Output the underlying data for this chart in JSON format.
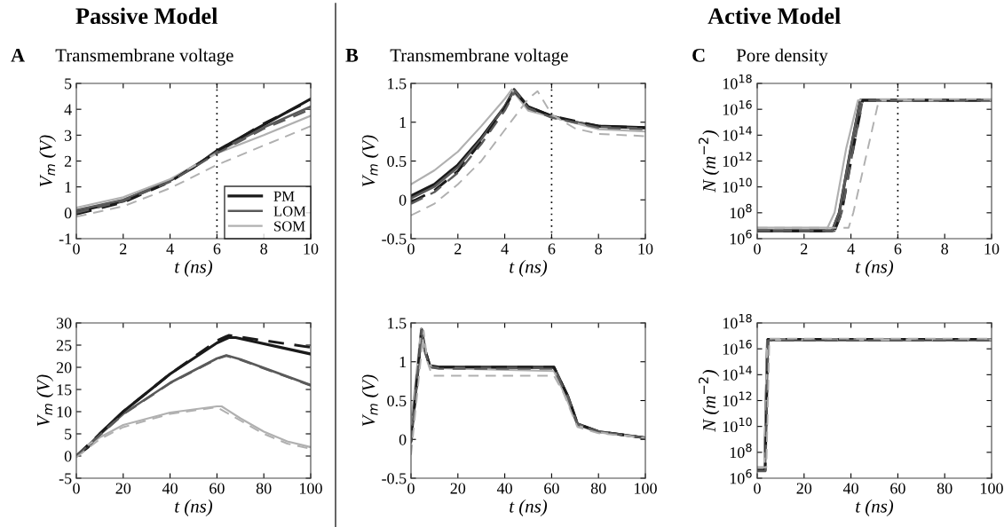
{
  "chart_data": [
    {
      "type": "line",
      "title": "Transmembrane voltage",
      "annotations": [
        "A",
        "Passive Model"
      ],
      "xlabel": "t (ns)",
      "ylabel": "V$_{m}$ (V)",
      "xlim": [
        0,
        10
      ],
      "xticks": [
        0,
        2,
        4,
        6,
        8,
        10
      ],
      "ylim": [
        -1,
        5
      ],
      "yticks": [
        -1,
        0,
        1,
        2,
        3,
        4,
        5
      ],
      "legend": "bottom right",
      "ref_lines": [
        {
          "axis": "x",
          "value": 6,
          "color": "#000000",
          "line_style": "dotted"
        }
      ],
      "series": [
        {
          "name": "PM",
          "color": "#1a1a1a",
          "line_style": "solid",
          "x": [
            0,
            2,
            4,
            5,
            6,
            7,
            8,
            9,
            10
          ],
          "values": [
            0.05,
            0.45,
            1.25,
            1.75,
            2.4,
            2.9,
            3.4,
            3.9,
            4.4
          ]
        },
        {
          "color": "#1a1a1a",
          "line_style": "dashed",
          "x": [
            0,
            2,
            4,
            6,
            8,
            10
          ],
          "values": [
            -0.05,
            0.4,
            1.2,
            2.35,
            3.45,
            4.35
          ]
        },
        {
          "name": "LOM",
          "color": "#5a5a5a",
          "line_style": "solid",
          "x": [
            0,
            2,
            4,
            6,
            8,
            10
          ],
          "values": [
            0.1,
            0.5,
            1.25,
            2.35,
            3.3,
            4.1
          ]
        },
        {
          "color": "#5a5a5a",
          "line_style": "dashed",
          "x": [
            0,
            2,
            4,
            6,
            8,
            10
          ],
          "values": [
            0.0,
            0.45,
            1.2,
            2.3,
            3.25,
            4.0
          ]
        },
        {
          "name": "SOM",
          "color": "#b0b0b0",
          "line_style": "solid",
          "x": [
            0,
            2,
            4,
            6,
            8,
            10
          ],
          "values": [
            0.2,
            0.6,
            1.3,
            2.3,
            3.0,
            3.75
          ]
        },
        {
          "color": "#b0b0b0",
          "line_style": "dashed",
          "x": [
            0,
            2,
            4,
            6,
            8,
            10
          ],
          "values": [
            -0.15,
            0.25,
            0.95,
            1.85,
            2.6,
            3.35
          ]
        }
      ]
    },
    {
      "type": "line",
      "title": "Transmembrane voltage",
      "annotations": [
        "B",
        "Active Model"
      ],
      "xlabel": "t (ns)",
      "ylabel": "V$_{m}$ (V)",
      "xlim": [
        0,
        10
      ],
      "xticks": [
        0,
        2,
        4,
        6,
        8,
        10
      ],
      "ylim": [
        -0.5,
        1.5
      ],
      "yticks": [
        -0.5,
        0,
        0.5,
        1,
        1.5
      ],
      "ref_lines": [
        {
          "axis": "x",
          "value": 6,
          "color": "#000000",
          "line_style": "dotted"
        }
      ],
      "series": [
        {
          "color": "#1a1a1a",
          "line_style": "solid",
          "x": [
            0,
            1,
            2,
            3,
            4,
            4.4,
            5,
            6,
            7,
            8,
            10
          ],
          "values": [
            0.05,
            0.2,
            0.45,
            0.8,
            1.2,
            1.42,
            1.2,
            1.08,
            1.0,
            0.95,
            0.93
          ]
        },
        {
          "color": "#1a1a1a",
          "line_style": "dashed",
          "x": [
            0,
            1,
            2,
            3,
            4,
            4.4,
            5,
            6,
            8,
            10
          ],
          "values": [
            -0.03,
            0.12,
            0.37,
            0.75,
            1.18,
            1.4,
            1.2,
            1.08,
            0.95,
            0.93
          ]
        },
        {
          "color": "#5a5a5a",
          "line_style": "solid",
          "x": [
            0,
            1,
            2,
            3,
            4,
            4.4,
            5,
            6,
            8,
            10
          ],
          "values": [
            0.02,
            0.17,
            0.42,
            0.78,
            1.2,
            1.41,
            1.18,
            1.07,
            0.94,
            0.92
          ]
        },
        {
          "color": "#5a5a5a",
          "line_style": "dashed",
          "x": [
            0,
            1,
            2,
            3,
            4,
            4.45,
            5,
            6,
            8,
            10
          ],
          "values": [
            -0.05,
            0.1,
            0.35,
            0.72,
            1.15,
            1.4,
            1.18,
            1.06,
            0.93,
            0.91
          ]
        },
        {
          "color": "#b0b0b0",
          "line_style": "solid",
          "x": [
            0,
            1,
            2,
            3,
            4,
            4.3,
            5,
            6,
            8,
            10
          ],
          "values": [
            0.2,
            0.38,
            0.62,
            0.95,
            1.3,
            1.42,
            1.15,
            1.07,
            0.91,
            0.88
          ]
        },
        {
          "color": "#b0b0b0",
          "line_style": "dashed",
          "x": [
            0,
            1,
            2,
            3,
            4,
            5,
            5.4,
            6,
            7,
            8,
            10
          ],
          "values": [
            -0.2,
            -0.05,
            0.2,
            0.5,
            0.9,
            1.3,
            1.4,
            1.1,
            0.92,
            0.85,
            0.82
          ]
        }
      ]
    },
    {
      "type": "line",
      "title": "Pore density",
      "annotations": [
        "C"
      ],
      "xlabel": "t (ns)",
      "ylabel": "N (m$^{−2}$)",
      "log": "y",
      "xlim": [
        0,
        10
      ],
      "xticks": [
        0,
        2,
        4,
        6,
        8,
        10
      ],
      "ylim": [
        1000000.0,
        1e+18
      ],
      "yticks": [
        {
          "value": 1000000.0,
          "label": "10$^{6}$"
        },
        {
          "value": 100000000.0,
          "label": "10$^{8}$"
        },
        {
          "value": 10000000000.0,
          "label": "10$^{10}$"
        },
        {
          "value": 1000000000000.0,
          "label": "10$^{12}$"
        },
        {
          "value": 100000000000000.0,
          "label": "10$^{14}$"
        },
        {
          "value": 1e+16,
          "label": "10$^{16}$"
        },
        {
          "value": 1e+18,
          "label": "10$^{18}$"
        }
      ],
      "ref_lines": [
        {
          "axis": "x",
          "value": 6,
          "color": "#000000",
          "line_style": "dotted"
        }
      ],
      "series": [
        {
          "color": "#1a1a1a",
          "line_style": "solid",
          "x": [
            0,
            3.2,
            3.5,
            4,
            4.4,
            10
          ],
          "values": [
            4000000.0,
            4000000.0,
            100000000.0,
            10000000000000.0,
            5e+16,
            5e+16
          ]
        },
        {
          "color": "#1a1a1a",
          "line_style": "dashed",
          "x": [
            0,
            3.3,
            3.6,
            4.1,
            4.5,
            10
          ],
          "values": [
            4000000.0,
            4000000.0,
            100000000.0,
            10000000000000.0,
            5e+16,
            5e+16
          ]
        },
        {
          "color": "#5a5a5a",
          "line_style": "solid",
          "x": [
            0,
            3.2,
            3.5,
            4,
            4.4,
            10
          ],
          "values": [
            4000000.0,
            4000000.0,
            100000000.0,
            10000000000000.0,
            5e+16,
            5e+16
          ]
        },
        {
          "color": "#5a5a5a",
          "line_style": "dashed",
          "x": [
            0,
            3.3,
            3.6,
            4.1,
            4.5,
            10
          ],
          "values": [
            4000000.0,
            4000000.0,
            100000000.0,
            10000000000000.0,
            5e+16,
            5e+16
          ]
        },
        {
          "color": "#b0b0b0",
          "line_style": "solid",
          "x": [
            0,
            3.0,
            3.3,
            3.8,
            4.3,
            10
          ],
          "values": [
            7000000.0,
            7000000.0,
            100000000.0,
            10000000000000.0,
            5e+16,
            5e+16
          ]
        },
        {
          "color": "#b0b0b0",
          "line_style": "dashed",
          "x": [
            0,
            3.9,
            4.1,
            4.6,
            5.2,
            10
          ],
          "values": [
            7000000.0,
            7000000.0,
            100000000.0,
            1000000000000.0,
            6e+16,
            6e+16
          ]
        }
      ]
    },
    {
      "type": "line",
      "xlabel": "t (ns)",
      "ylabel": "V$_{m}$ (V)",
      "xlim": [
        0,
        100
      ],
      "xticks": [
        0,
        20,
        40,
        60,
        80,
        100
      ],
      "ylim": [
        -5,
        30
      ],
      "yticks": [
        -5,
        0,
        5,
        10,
        15,
        20,
        25,
        30
      ],
      "series": [
        {
          "color": "#1a1a1a",
          "line_style": "solid",
          "x": [
            0,
            5,
            10,
            20,
            40,
            60,
            65,
            68,
            100
          ],
          "values": [
            0,
            2,
            5,
            10,
            18.5,
            25.5,
            26.7,
            26.7,
            23
          ]
        },
        {
          "color": "#1a1a1a",
          "line_style": "dashed",
          "x": [
            0,
            10,
            20,
            40,
            60,
            65,
            100
          ],
          "values": [
            0,
            5,
            10,
            18.5,
            26,
            27.2,
            24.5
          ]
        },
        {
          "color": "#5a5a5a",
          "line_style": "solid",
          "x": [
            0,
            10,
            20,
            40,
            60,
            64,
            70,
            100
          ],
          "values": [
            0,
            4.8,
            9.5,
            16.5,
            22,
            22.7,
            21.8,
            16
          ]
        },
        {
          "color": "#5a5a5a",
          "line_style": "dashed",
          "x": [
            0,
            10,
            20,
            40,
            60,
            64,
            70,
            100
          ],
          "values": [
            0,
            4.7,
            9.4,
            16.4,
            21.9,
            22.6,
            21.7,
            15.9
          ]
        },
        {
          "color": "#b0b0b0",
          "line_style": "solid",
          "x": [
            0,
            5,
            10,
            20,
            40,
            60,
            62,
            70,
            80,
            90,
            100
          ],
          "values": [
            0,
            2.5,
            4.2,
            7,
            9.8,
            11.2,
            11.2,
            8.5,
            5.5,
            3.3,
            2
          ]
        },
        {
          "color": "#b0b0b0",
          "line_style": "dashed",
          "x": [
            0,
            10,
            20,
            40,
            60,
            70,
            80,
            90,
            100
          ],
          "values": [
            -0.3,
            3.8,
            6.5,
            9.5,
            11,
            8,
            5,
            2.8,
            1.6
          ]
        }
      ]
    },
    {
      "type": "line",
      "xlabel": "t (ns)",
      "ylabel": "V$_{m}$ (V)",
      "xlim": [
        0,
        100
      ],
      "xticks": [
        0,
        20,
        40,
        60,
        80,
        100
      ],
      "ylim": [
        -0.5,
        1.5
      ],
      "yticks": [
        -0.5,
        0,
        0.5,
        1,
        1.5
      ],
      "series": [
        {
          "color": "#1a1a1a",
          "line_style": "solid",
          "x": [
            0,
            3,
            4.5,
            6,
            8,
            12,
            61,
            67,
            71,
            80,
            100
          ],
          "values": [
            0,
            0.9,
            1.42,
            1.15,
            0.95,
            0.93,
            0.93,
            0.55,
            0.2,
            0.1,
            0.02
          ]
        },
        {
          "color": "#1a1a1a",
          "line_style": "dashed",
          "x": [
            0,
            4.5,
            6,
            8,
            12,
            61,
            67,
            71,
            80,
            100
          ],
          "values": [
            -0.03,
            1.4,
            1.15,
            0.95,
            0.93,
            0.93,
            0.55,
            0.2,
            0.1,
            0.02
          ]
        },
        {
          "color": "#5a5a5a",
          "line_style": "solid",
          "x": [
            0,
            4.5,
            6,
            8,
            12,
            61,
            67,
            71,
            80,
            100
          ],
          "values": [
            0.02,
            1.41,
            1.14,
            0.94,
            0.92,
            0.92,
            0.55,
            0.2,
            0.1,
            0.02
          ]
        },
        {
          "color": "#5a5a5a",
          "line_style": "dashed",
          "x": [
            0,
            4.5,
            6,
            8,
            12,
            61,
            67,
            71,
            80,
            100
          ],
          "values": [
            -0.05,
            1.4,
            1.13,
            0.93,
            0.91,
            0.91,
            0.54,
            0.19,
            0.1,
            0.02
          ]
        },
        {
          "color": "#b0b0b0",
          "line_style": "solid",
          "x": [
            0,
            4.3,
            6,
            9,
            61,
            66,
            71,
            80,
            100
          ],
          "values": [
            0.2,
            1.42,
            1.1,
            0.92,
            0.88,
            0.55,
            0.18,
            0.09,
            0.02
          ]
        },
        {
          "color": "#b0b0b0",
          "line_style": "dashed",
          "x": [
            0,
            5.4,
            7,
            9,
            61,
            65,
            71,
            80,
            100
          ],
          "values": [
            -0.2,
            1.4,
            1.0,
            0.82,
            0.82,
            0.6,
            0.16,
            0.08,
            0.02
          ]
        }
      ]
    },
    {
      "type": "line",
      "xlabel": "t (ns)",
      "ylabel": "N (m$^{−2}$)",
      "log": "y",
      "xlim": [
        0,
        100
      ],
      "xticks": [
        0,
        20,
        40,
        60,
        80,
        100
      ],
      "ylim": [
        1000000.0,
        1e+18
      ],
      "yticks": [
        {
          "value": 1000000.0,
          "label": "10$^{6}$"
        },
        {
          "value": 100000000.0,
          "label": "10$^{8}$"
        },
        {
          "value": 10000000000.0,
          "label": "10$^{10}$"
        },
        {
          "value": 1000000000000.0,
          "label": "10$^{12}$"
        },
        {
          "value": 100000000000000.0,
          "label": "10$^{14}$"
        },
        {
          "value": 1e+16,
          "label": "10$^{16}$"
        },
        {
          "value": 1e+18,
          "label": "10$^{18}$"
        }
      ],
      "series": [
        {
          "color": "#1a1a1a",
          "line_style": "solid",
          "x": [
            0,
            3.2,
            4.4,
            100
          ],
          "values": [
            4000000.0,
            4000000.0,
            5e+16,
            5e+16
          ]
        },
        {
          "color": "#1a1a1a",
          "line_style": "dashed",
          "x": [
            0,
            3.4,
            4.6,
            100
          ],
          "values": [
            4000000.0,
            4000000.0,
            5.5e+16,
            5.5e+16
          ]
        },
        {
          "color": "#5a5a5a",
          "line_style": "solid",
          "x": [
            0,
            3.2,
            4.4,
            100
          ],
          "values": [
            4000000.0,
            4000000.0,
            5e+16,
            5e+16
          ]
        },
        {
          "color": "#5a5a5a",
          "line_style": "dashed",
          "x": [
            0,
            3.5,
            4.7,
            100
          ],
          "values": [
            3500000.0,
            3500000.0,
            4.5e+16,
            4.5e+16
          ]
        },
        {
          "color": "#b0b0b0",
          "line_style": "solid",
          "x": [
            0,
            3.0,
            4.3,
            100
          ],
          "values": [
            7000000.0,
            7000000.0,
            5e+16,
            5e+16
          ]
        },
        {
          "color": "#b0b0b0",
          "line_style": "dashed",
          "x": [
            0,
            3.9,
            5.2,
            100
          ],
          "values": [
            7000000.0,
            7000000.0,
            6e+16,
            6e+16
          ]
        }
      ]
    }
  ]
}
